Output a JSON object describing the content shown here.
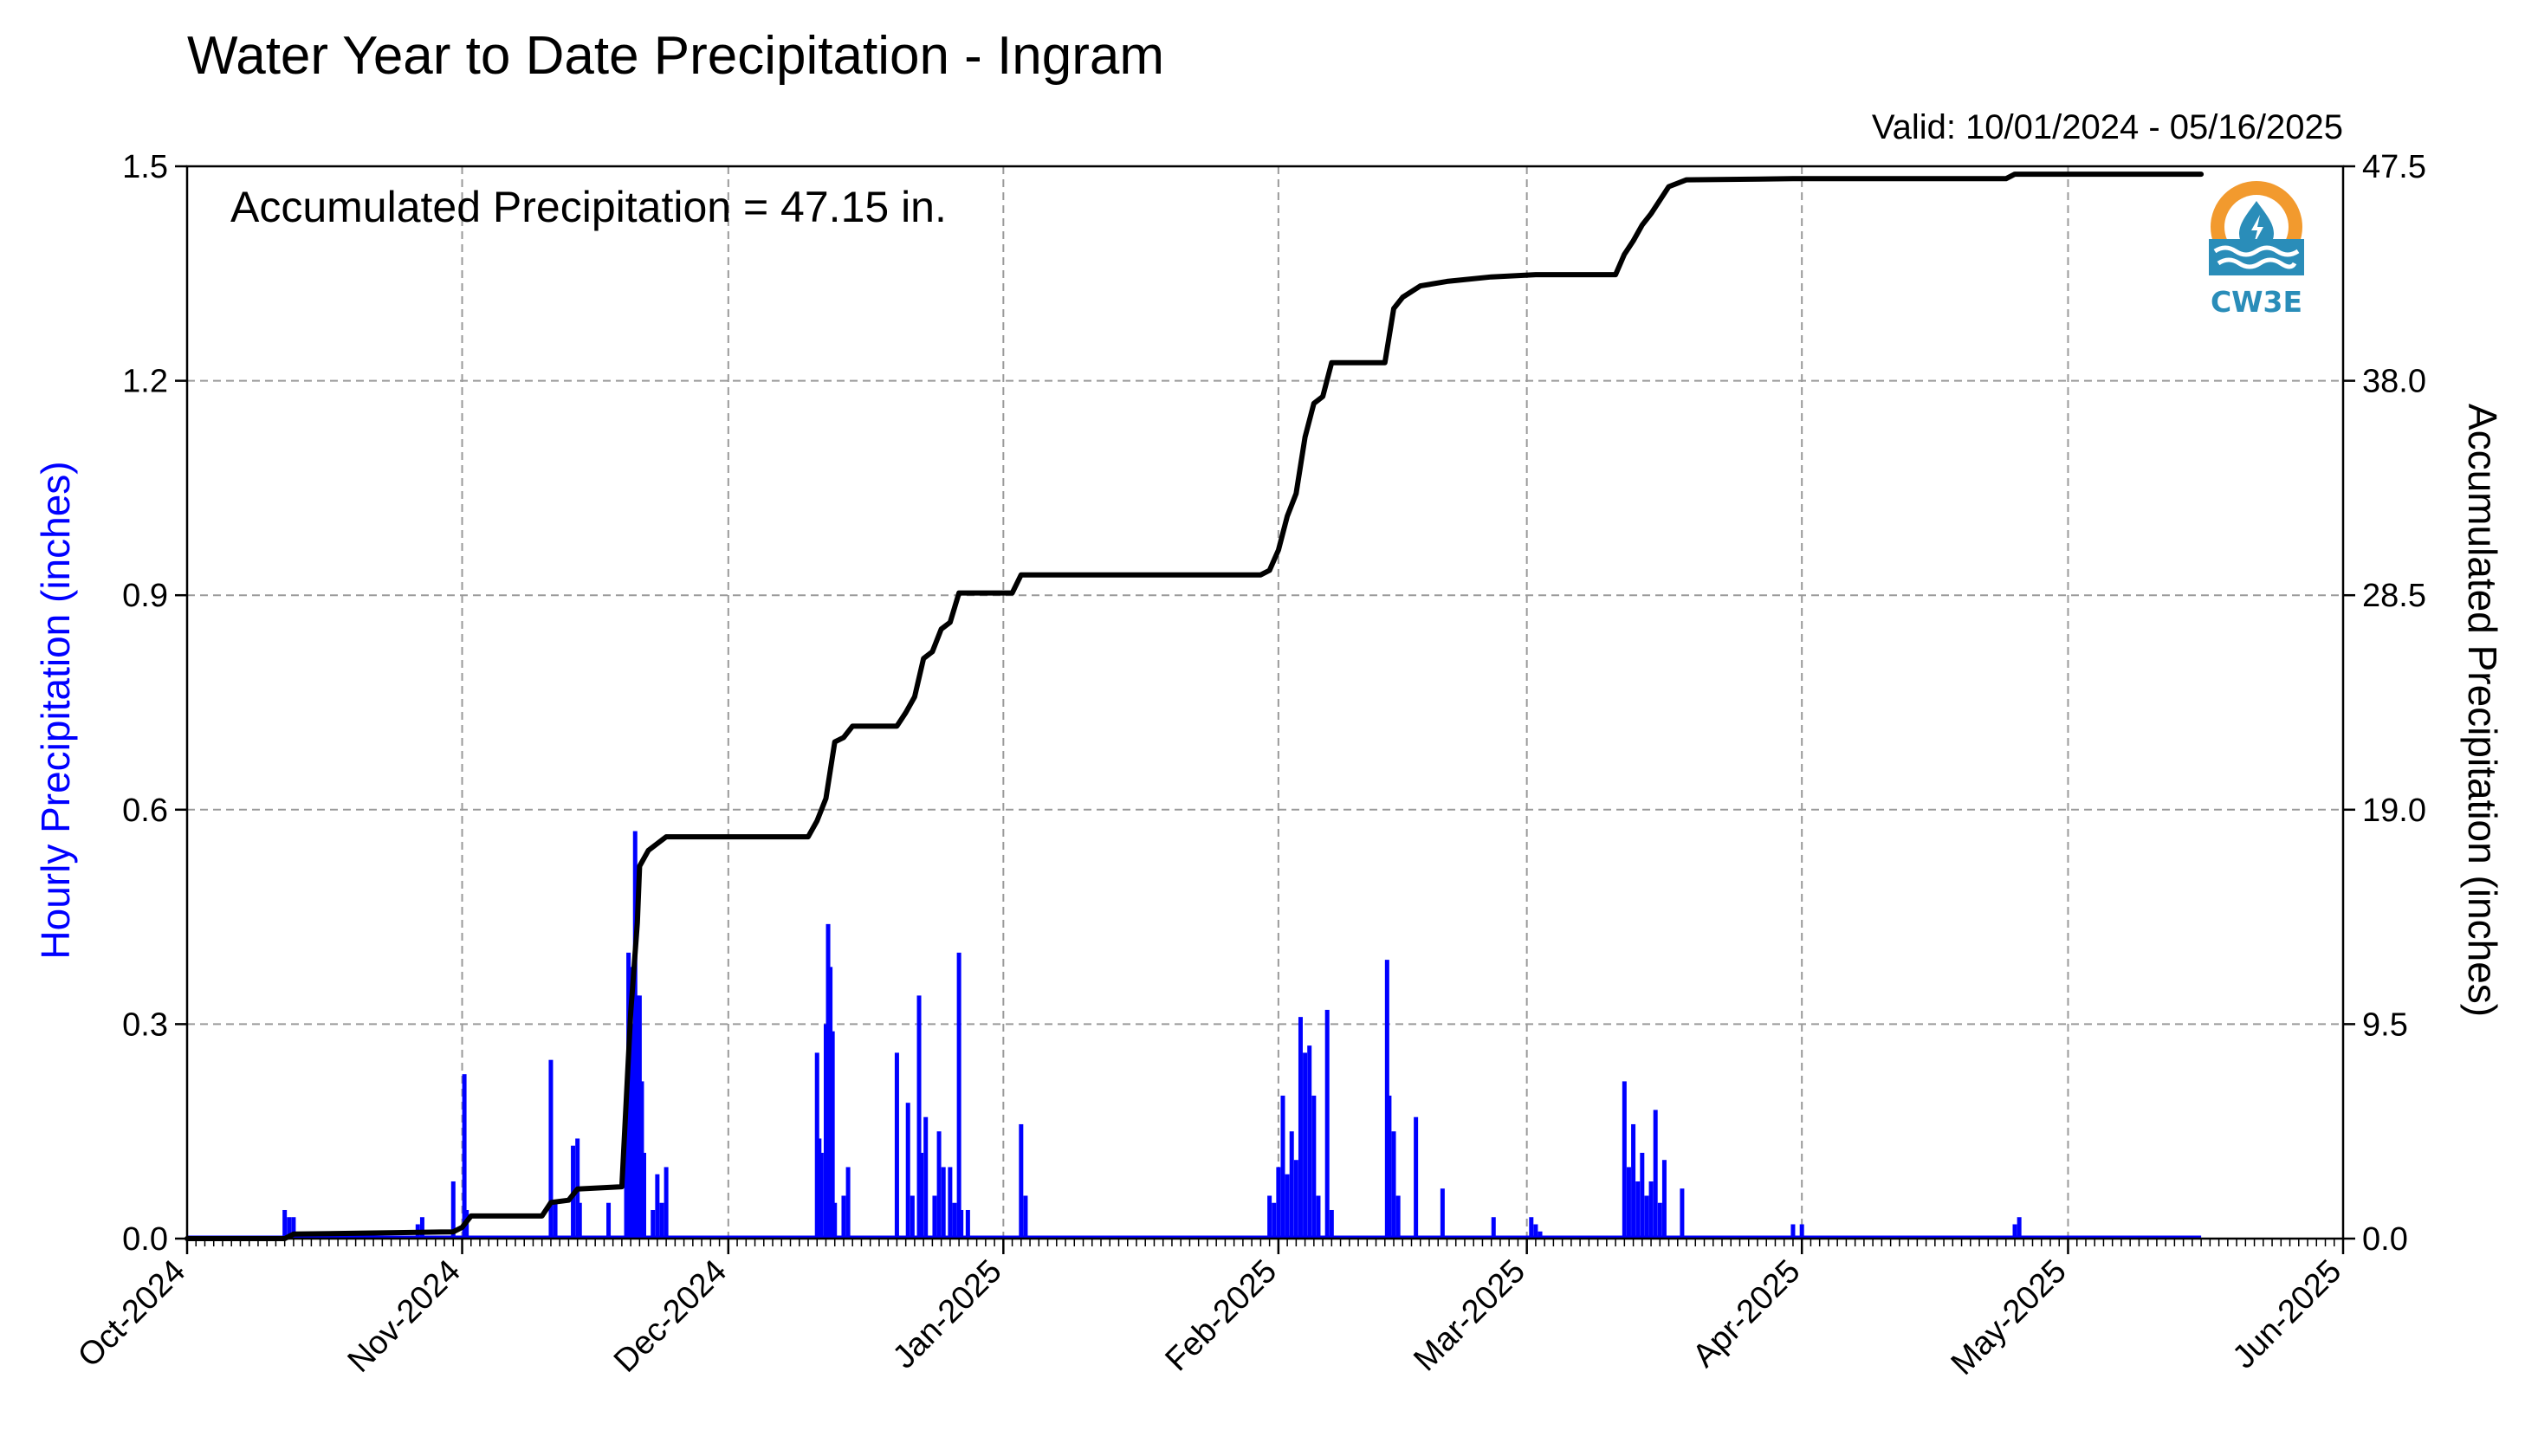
{
  "chart_data": {
    "type": "bar",
    "title": "Water Year to Date Precipitation - Ingram",
    "valid_text": "Valid: 10/01/2024 - 05/16/2025",
    "annotation": "Accumulated Precipitation = 47.15 in.",
    "xlabel": "",
    "ylabel": "Hourly Precipitation (inches)",
    "ylabel_right": "Accumulated Precipitation (inches)",
    "xlim": [
      "2024-10-01",
      "2025-06-01"
    ],
    "ylim": [
      0,
      1.5
    ],
    "ylim_right": [
      0,
      47.5
    ],
    "grid": true,
    "x_ticks": [
      "Oct-2024",
      "Nov-2024",
      "Dec-2024",
      "Jan-2025",
      "Feb-2025",
      "Mar-2025",
      "Apr-2025",
      "May-2025",
      "Jun-2025"
    ],
    "y_ticks_left": [
      "0.0",
      "0.3",
      "0.6",
      "0.9",
      "1.2",
      "1.5"
    ],
    "y_ticks_right": [
      "0.0",
      "9.5",
      "19.0",
      "28.5",
      "38.0",
      "47.5"
    ],
    "colors": {
      "hourly": "#0000ff",
      "accumulated": "#000000",
      "grid": "#9a9a9a"
    },
    "series": [
      {
        "name": "Hourly Precipitation",
        "axis": "left",
        "style": "bars",
        "points": [
          [
            "2024-10-12T00:00",
            0.04
          ],
          [
            "2024-10-12T12:00",
            0.03
          ],
          [
            "2024-10-13T00:00",
            0.03
          ],
          [
            "2024-10-27T00:00",
            0.02
          ],
          [
            "2024-10-27T12:00",
            0.03
          ],
          [
            "2024-10-31T00:00",
            0.08
          ],
          [
            "2024-11-01T06:00",
            0.23
          ],
          [
            "2024-11-01T12:00",
            0.04
          ],
          [
            "2024-11-11T00:00",
            0.25
          ],
          [
            "2024-11-11T12:00",
            0.05
          ],
          [
            "2024-11-13T12:00",
            0.13
          ],
          [
            "2024-11-14T00:00",
            0.14
          ],
          [
            "2024-11-14T06:00",
            0.05
          ],
          [
            "2024-11-17T12:00",
            0.05
          ],
          [
            "2024-11-19T12:00",
            0.2
          ],
          [
            "2024-11-19T18:00",
            0.4
          ],
          [
            "2024-11-20T00:00",
            0.38
          ],
          [
            "2024-11-20T06:00",
            0.3
          ],
          [
            "2024-11-20T12:00",
            0.57
          ],
          [
            "2024-11-20T18:00",
            0.34
          ],
          [
            "2024-11-21T00:00",
            0.34
          ],
          [
            "2024-11-21T06:00",
            0.22
          ],
          [
            "2024-11-21T12:00",
            0.12
          ],
          [
            "2024-11-22T12:00",
            0.04
          ],
          [
            "2024-11-23T00:00",
            0.09
          ],
          [
            "2024-11-23T12:00",
            0.05
          ],
          [
            "2024-11-24T00:00",
            0.1
          ],
          [
            "2024-12-11T00:00",
            0.26
          ],
          [
            "2024-12-11T06:00",
            0.14
          ],
          [
            "2024-12-11T12:00",
            0.12
          ],
          [
            "2024-12-12T00:00",
            0.3
          ],
          [
            "2024-12-12T06:00",
            0.44
          ],
          [
            "2024-12-12T12:00",
            0.38
          ],
          [
            "2024-12-12T18:00",
            0.29
          ],
          [
            "2024-12-13T00:00",
            0.05
          ],
          [
            "2024-12-14T00:00",
            0.06
          ],
          [
            "2024-12-14T12:00",
            0.1
          ],
          [
            "2024-12-20T00:00",
            0.26
          ],
          [
            "2024-12-21T06:00",
            0.19
          ],
          [
            "2024-12-21T18:00",
            0.06
          ],
          [
            "2024-12-22T12:00",
            0.34
          ],
          [
            "2024-12-22T18:00",
            0.12
          ],
          [
            "2024-12-23T06:00",
            0.17
          ],
          [
            "2024-12-24T06:00",
            0.06
          ],
          [
            "2024-12-24T18:00",
            0.15
          ],
          [
            "2024-12-25T06:00",
            0.1
          ],
          [
            "2024-12-26T00:00",
            0.1
          ],
          [
            "2024-12-26T12:00",
            0.05
          ],
          [
            "2024-12-27T00:00",
            0.4
          ],
          [
            "2024-12-27T06:00",
            0.04
          ],
          [
            "2024-12-28T00:00",
            0.04
          ],
          [
            "2025-01-03T00:00",
            0.16
          ],
          [
            "2025-01-03T12:00",
            0.06
          ],
          [
            "2025-01-31T00:00",
            0.06
          ],
          [
            "2025-01-31T12:00",
            0.05
          ],
          [
            "2025-02-01T00:00",
            0.1
          ],
          [
            "2025-02-01T12:00",
            0.2
          ],
          [
            "2025-02-02T00:00",
            0.09
          ],
          [
            "2025-02-02T12:00",
            0.15
          ],
          [
            "2025-02-03T00:00",
            0.11
          ],
          [
            "2025-02-03T12:00",
            0.31
          ],
          [
            "2025-02-04T00:00",
            0.26
          ],
          [
            "2025-02-04T12:00",
            0.27
          ],
          [
            "2025-02-05T00:00",
            0.2
          ],
          [
            "2025-02-05T12:00",
            0.06
          ],
          [
            "2025-02-06T12:00",
            0.32
          ],
          [
            "2025-02-07T00:00",
            0.04
          ],
          [
            "2025-02-13T06:00",
            0.39
          ],
          [
            "2025-02-13T12:00",
            0.2
          ],
          [
            "2025-02-14T00:00",
            0.15
          ],
          [
            "2025-02-14T12:00",
            0.06
          ],
          [
            "2025-02-16T12:00",
            0.17
          ],
          [
            "2025-02-19T12:00",
            0.07
          ],
          [
            "2025-02-25T06:00",
            0.03
          ],
          [
            "2025-03-01T12:00",
            0.03
          ],
          [
            "2025-03-02T00:00",
            0.02
          ],
          [
            "2025-03-02T12:00",
            0.01
          ],
          [
            "2025-03-12T00:00",
            0.22
          ],
          [
            "2025-03-12T12:00",
            0.1
          ],
          [
            "2025-03-13T00:00",
            0.16
          ],
          [
            "2025-03-13T12:00",
            0.08
          ],
          [
            "2025-03-14T00:00",
            0.12
          ],
          [
            "2025-03-14T12:00",
            0.06
          ],
          [
            "2025-03-15T00:00",
            0.08
          ],
          [
            "2025-03-15T12:00",
            0.18
          ],
          [
            "2025-03-16T00:00",
            0.05
          ],
          [
            "2025-03-16T12:00",
            0.11
          ],
          [
            "2025-03-18T12:00",
            0.07
          ],
          [
            "2025-03-31T00:00",
            0.02
          ],
          [
            "2025-04-01T00:00",
            0.02
          ],
          [
            "2025-04-25T00:00",
            0.02
          ],
          [
            "2025-04-25T12:00",
            0.03
          ]
        ]
      },
      {
        "name": "Accumulated Precipitation",
        "axis": "right",
        "style": "line",
        "points": [
          [
            "2024-10-01",
            0.0
          ],
          [
            "2024-10-12",
            0.0
          ],
          [
            "2024-10-13",
            0.2
          ],
          [
            "2024-10-31",
            0.3
          ],
          [
            "2024-11-01",
            0.5
          ],
          [
            "2024-11-02",
            1.0
          ],
          [
            "2024-11-10",
            1.0
          ],
          [
            "2024-11-11",
            1.6
          ],
          [
            "2024-11-13",
            1.7
          ],
          [
            "2024-11-14",
            2.2
          ],
          [
            "2024-11-19",
            2.3
          ],
          [
            "2024-11-20",
            10.0
          ],
          [
            "2024-11-20T18:00",
            14.0
          ],
          [
            "2024-11-21",
            16.5
          ],
          [
            "2024-11-22",
            17.2
          ],
          [
            "2024-11-24",
            17.8
          ],
          [
            "2024-12-10",
            17.8
          ],
          [
            "2024-12-11",
            18.5
          ],
          [
            "2024-12-12",
            19.5
          ],
          [
            "2024-12-13",
            22.0
          ],
          [
            "2024-12-14",
            22.2
          ],
          [
            "2024-12-15",
            22.7
          ],
          [
            "2024-12-20",
            22.7
          ],
          [
            "2024-12-21",
            23.3
          ],
          [
            "2024-12-22",
            24.0
          ],
          [
            "2024-12-23",
            25.7
          ],
          [
            "2024-12-24",
            26.0
          ],
          [
            "2024-12-25",
            27.0
          ],
          [
            "2024-12-26",
            27.3
          ],
          [
            "2024-12-27",
            28.6
          ],
          [
            "2025-01-02",
            28.6
          ],
          [
            "2025-01-03",
            29.4
          ],
          [
            "2025-01-30",
            29.4
          ],
          [
            "2025-01-31",
            29.6
          ],
          [
            "2025-02-01",
            30.5
          ],
          [
            "2025-02-02",
            32.0
          ],
          [
            "2025-02-03",
            33.0
          ],
          [
            "2025-02-04",
            35.5
          ],
          [
            "2025-02-05",
            37.0
          ],
          [
            "2025-02-06",
            37.3
          ],
          [
            "2025-02-07",
            38.8
          ],
          [
            "2025-02-13",
            38.8
          ],
          [
            "2025-02-14",
            41.2
          ],
          [
            "2025-02-15",
            41.7
          ],
          [
            "2025-02-17",
            42.2
          ],
          [
            "2025-02-20",
            42.4
          ],
          [
            "2025-02-25",
            42.6
          ],
          [
            "2025-03-02",
            42.7
          ],
          [
            "2025-03-11",
            42.7
          ],
          [
            "2025-03-12",
            43.6
          ],
          [
            "2025-03-13",
            44.2
          ],
          [
            "2025-03-14",
            44.9
          ],
          [
            "2025-03-15",
            45.4
          ],
          [
            "2025-03-16",
            46.0
          ],
          [
            "2025-03-17",
            46.6
          ],
          [
            "2025-03-19",
            46.9
          ],
          [
            "2025-03-31",
            46.95
          ],
          [
            "2025-04-24",
            46.95
          ],
          [
            "2025-04-25",
            47.15
          ],
          [
            "2025-05-16",
            47.15
          ]
        ]
      }
    ]
  },
  "logo": {
    "text": "CW3E",
    "colors": {
      "orange": "#f29a2e",
      "blue": "#2a8db9",
      "text": "#2a8db9"
    }
  }
}
